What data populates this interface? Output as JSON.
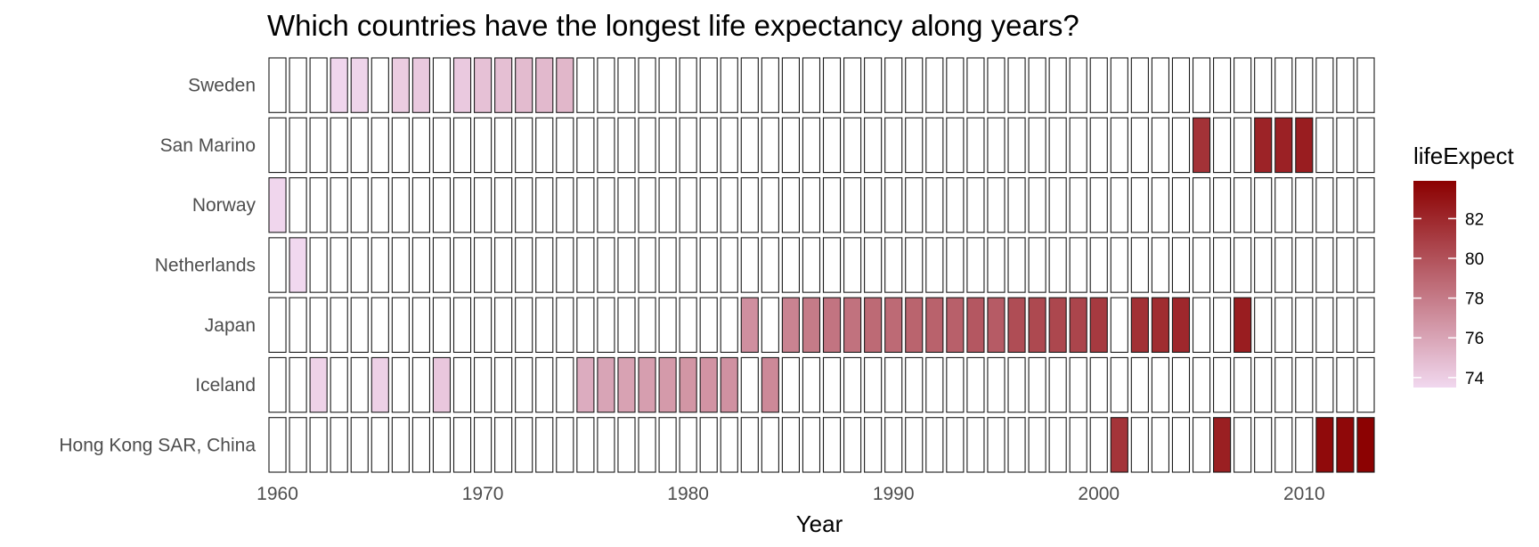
{
  "chart_data": {
    "type": "heatmap",
    "title": "Which countries have the longest life expectancy along years?",
    "xlabel": "Year",
    "ylabel": "",
    "x_range": [
      1960,
      2013
    ],
    "x_ticks": [
      1960,
      1970,
      1980,
      1990,
      2000,
      2010
    ],
    "countries": [
      "Sweden",
      "San Marino",
      "Norway",
      "Netherlands",
      "Japan",
      "Iceland",
      "Hong Kong SAR, China"
    ],
    "legend": {
      "title": "lifeExpect",
      "ticks": [
        74,
        76,
        78,
        80,
        82
      ],
      "range": [
        73.5,
        83.9
      ],
      "color_low": "#f1d8ef",
      "color_high": "#8b0000"
    },
    "cells": [
      {
        "country": "Sweden",
        "year": 1963,
        "value": 73.6
      },
      {
        "country": "Sweden",
        "year": 1964,
        "value": 73.7
      },
      {
        "country": "Sweden",
        "year": 1966,
        "value": 74.1
      },
      {
        "country": "Sweden",
        "year": 1967,
        "value": 74.2
      },
      {
        "country": "Sweden",
        "year": 1969,
        "value": 74.2
      },
      {
        "country": "Sweden",
        "year": 1970,
        "value": 74.6
      },
      {
        "country": "Sweden",
        "year": 1971,
        "value": 74.7
      },
      {
        "country": "Sweden",
        "year": 1972,
        "value": 74.9
      },
      {
        "country": "Sweden",
        "year": 1973,
        "value": 75.0
      },
      {
        "country": "Sweden",
        "year": 1974,
        "value": 75.1
      },
      {
        "country": "San Marino",
        "year": 2005,
        "value": 81.5
      },
      {
        "country": "San Marino",
        "year": 2008,
        "value": 82.2
      },
      {
        "country": "San Marino",
        "year": 2009,
        "value": 82.3
      },
      {
        "country": "San Marino",
        "year": 2010,
        "value": 82.5
      },
      {
        "country": "Norway",
        "year": 1960,
        "value": 73.6
      },
      {
        "country": "Netherlands",
        "year": 1961,
        "value": 73.5
      },
      {
        "country": "Japan",
        "year": 1983,
        "value": 77.0
      },
      {
        "country": "Japan",
        "year": 1985,
        "value": 77.6
      },
      {
        "country": "Japan",
        "year": 1986,
        "value": 78.0
      },
      {
        "country": "Japan",
        "year": 1987,
        "value": 78.3
      },
      {
        "country": "Japan",
        "year": 1988,
        "value": 78.4
      },
      {
        "country": "Japan",
        "year": 1989,
        "value": 78.8
      },
      {
        "country": "Japan",
        "year": 1990,
        "value": 78.8
      },
      {
        "country": "Japan",
        "year": 1991,
        "value": 79.1
      },
      {
        "country": "Japan",
        "year": 1992,
        "value": 79.2
      },
      {
        "country": "Japan",
        "year": 1993,
        "value": 79.3
      },
      {
        "country": "Japan",
        "year": 1994,
        "value": 79.7
      },
      {
        "country": "Japan",
        "year": 1995,
        "value": 79.5
      },
      {
        "country": "Japan",
        "year": 1996,
        "value": 80.2
      },
      {
        "country": "Japan",
        "year": 1997,
        "value": 80.4
      },
      {
        "country": "Japan",
        "year": 1998,
        "value": 80.5
      },
      {
        "country": "Japan",
        "year": 1999,
        "value": 80.6
      },
      {
        "country": "Japan",
        "year": 2000,
        "value": 81.1
      },
      {
        "country": "Japan",
        "year": 2002,
        "value": 81.6
      },
      {
        "country": "Japan",
        "year": 2003,
        "value": 81.8
      },
      {
        "country": "Japan",
        "year": 2004,
        "value": 82.0
      },
      {
        "country": "Japan",
        "year": 2007,
        "value": 82.5
      },
      {
        "country": "Iceland",
        "year": 1962,
        "value": 73.8
      },
      {
        "country": "Iceland",
        "year": 1965,
        "value": 73.9
      },
      {
        "country": "Iceland",
        "year": 1968,
        "value": 74.3
      },
      {
        "country": "Iceland",
        "year": 1975,
        "value": 75.6
      },
      {
        "country": "Iceland",
        "year": 1976,
        "value": 76.0
      },
      {
        "country": "Iceland",
        "year": 1977,
        "value": 76.1
      },
      {
        "country": "Iceland",
        "year": 1978,
        "value": 76.3
      },
      {
        "country": "Iceland",
        "year": 1979,
        "value": 76.5
      },
      {
        "country": "Iceland",
        "year": 1980,
        "value": 76.7
      },
      {
        "country": "Iceland",
        "year": 1981,
        "value": 76.8
      },
      {
        "country": "Iceland",
        "year": 1982,
        "value": 76.9
      },
      {
        "country": "Iceland",
        "year": 1984,
        "value": 77.3
      },
      {
        "country": "Hong Kong SAR, China",
        "year": 2001,
        "value": 81.4
      },
      {
        "country": "Hong Kong SAR, China",
        "year": 2006,
        "value": 82.4
      },
      {
        "country": "Hong Kong SAR, China",
        "year": 2011,
        "value": 83.4
      },
      {
        "country": "Hong Kong SAR, China",
        "year": 2012,
        "value": 83.5
      },
      {
        "country": "Hong Kong SAR, China",
        "year": 2013,
        "value": 83.8
      }
    ]
  }
}
